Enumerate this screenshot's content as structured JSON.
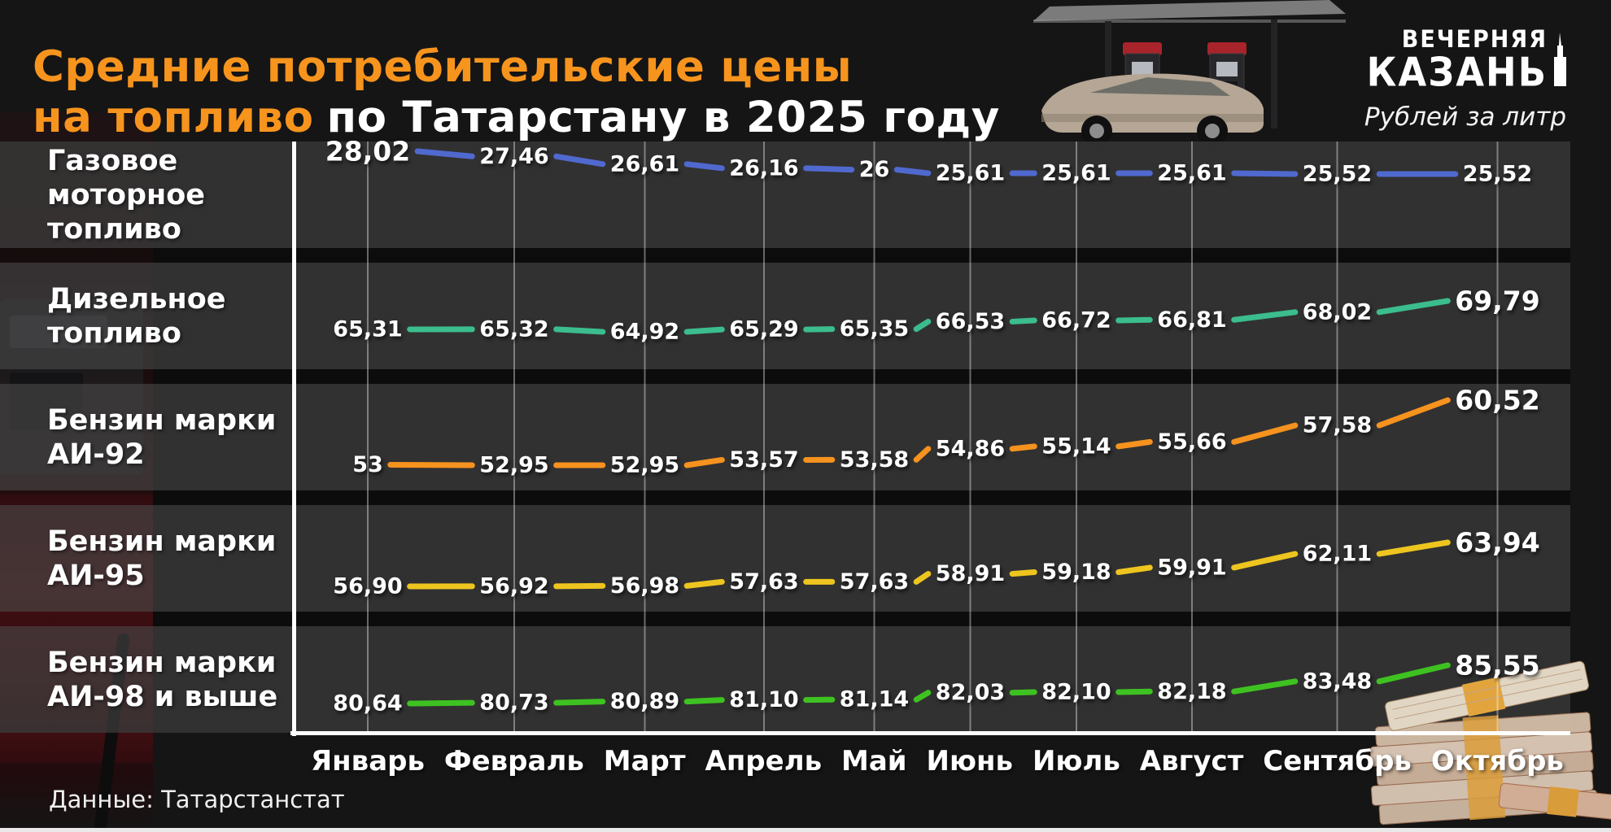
{
  "header": {
    "title_line1": "Средние потребительские цены",
    "title_line2_orange": "на топливо",
    "title_line2_white": "по Татарстану в 2025 году",
    "units": "Рублей за литр",
    "accent_color": "#f7941e"
  },
  "logo": {
    "line1": "ВЕЧЕРНЯЯ",
    "line2": "КАЗАНЬ"
  },
  "footer": {
    "source": "Данные: Татарстанстат"
  },
  "chart_data": {
    "type": "line",
    "title": "Средние потребительские цены на топливо по Татарстану в 2025 году",
    "unit_label": "Рублей за литр",
    "grid": "vertical-gridlines-on",
    "x_categories": [
      "Январь",
      "Февраль",
      "Март",
      "Апрель",
      "Май",
      "Июнь",
      "Июль",
      "Август",
      "Сентябрь",
      "Октябрь"
    ],
    "series": [
      {
        "name": "Газовое моторное топливо",
        "color": "#5069cf",
        "labels": [
          "28,02",
          "27,46",
          "26,61",
          "26,16",
          "26",
          "25,61",
          "25,61",
          "25,61",
          "25,52",
          "25,52"
        ],
        "values": [
          28.02,
          27.46,
          26.61,
          26.16,
          26,
          25.61,
          25.61,
          25.61,
          25.52,
          25.52
        ],
        "emphasis_index": 0
      },
      {
        "name": "Дизельное топливо",
        "color": "#3bbd8d",
        "labels": [
          "65,31",
          "65,32",
          "64,92",
          "65,29",
          "65,35",
          "66,53",
          "66,72",
          "66,81",
          "68,02",
          "69,79"
        ],
        "values": [
          65.31,
          65.32,
          64.92,
          65.29,
          65.35,
          66.53,
          66.72,
          66.81,
          68.02,
          69.79
        ],
        "emphasis_index": 9
      },
      {
        "name": "Бензин марки АИ-92",
        "color": "#f6921e",
        "labels": [
          "53",
          "52,95",
          "52,95",
          "53,57",
          "53,58",
          "54,86",
          "55,14",
          "55,66",
          "57,58",
          "60,52"
        ],
        "values": [
          53,
          52.95,
          52.95,
          53.57,
          53.58,
          54.86,
          55.14,
          55.66,
          57.58,
          60.52
        ],
        "emphasis_index": 9
      },
      {
        "name": "Бензин марки АИ-95",
        "color": "#eec51f",
        "labels": [
          "56,90",
          "56,92",
          "56,98",
          "57,63",
          "57,63",
          "58,91",
          "59,18",
          "59,91",
          "62,11",
          "63,94"
        ],
        "values": [
          56.9,
          56.92,
          56.98,
          57.63,
          57.63,
          58.91,
          59.18,
          59.91,
          62.11,
          63.94
        ],
        "emphasis_index": 9
      },
      {
        "name": "Бензин марки АИ-98 и выше",
        "color": "#3ec221",
        "labels": [
          "80,64",
          "80,73",
          "80,89",
          "81,10",
          "81,14",
          "82,03",
          "82,10",
          "82,18",
          "83,48",
          "85,55"
        ],
        "values": [
          80.64,
          80.73,
          80.89,
          81.1,
          81.14,
          82.03,
          82.1,
          82.18,
          83.48,
          85.55
        ],
        "emphasis_index": 9
      }
    ]
  }
}
